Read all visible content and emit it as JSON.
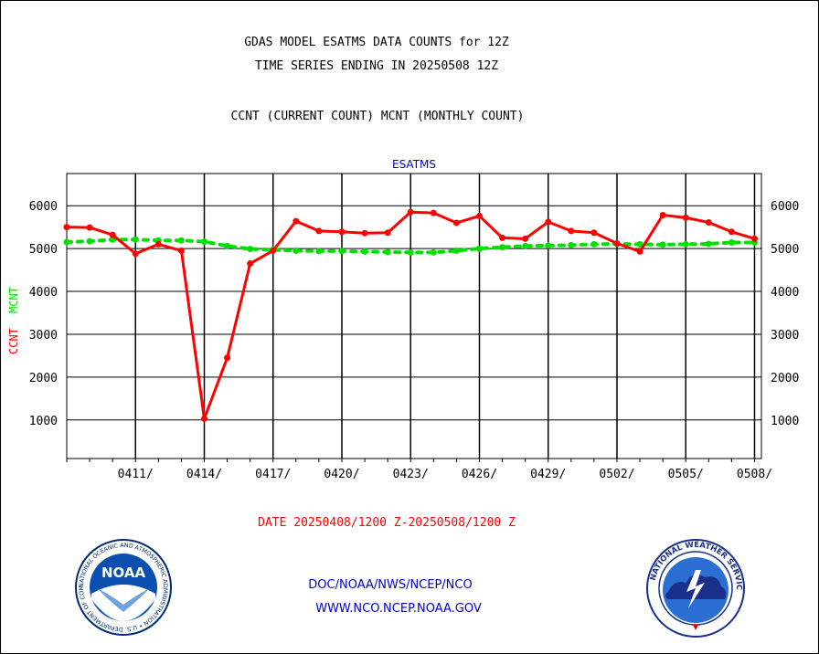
{
  "header": {
    "title_line1": "GDAS MODEL ESATMS DATA COUNTS for 12Z",
    "title_line2": "TIME SERIES ENDING IN 20250508 12Z",
    "subtitle": "CCNT (CURRENT COUNT) MCNT (MONTHLY COUNT)"
  },
  "footer": {
    "date_range": "DATE 20250408/1200 Z-20250508/1200 Z",
    "org_line1": "DOC/NOAA/NWS/NCEP/NCO",
    "org_line2": "WWW.NCO.NCEP.NOAA.GOV"
  },
  "logos": {
    "noaa_text": "NOAA",
    "noaa_ring": "NATIONAL OCEANIC AND ATMOSPHERIC ADMINISTRATION • U.S. DEPARTMENT OF COMMERCE •",
    "nws_ring": "NATIONAL WEATHER SERVICE"
  },
  "colors": {
    "ccnt": "#ff0000",
    "mcnt": "#00e000",
    "title": "#000000",
    "date": "#ff0000",
    "org": "#0000cc",
    "chart_title": "#0000cc"
  },
  "chart_data": {
    "type": "line",
    "title": "ESATMS",
    "ylabel_series": [
      "CCNT",
      "MCNT"
    ],
    "xlabel": "",
    "x_tick_labels": [
      "0411/",
      "0414/",
      "0417/",
      "0420/",
      "0423/",
      "0426/",
      "0429/",
      "0502/",
      "0505/",
      "0508/"
    ],
    "x_tick_days": [
      3,
      6,
      9,
      12,
      15,
      18,
      21,
      24,
      27,
      30
    ],
    "y_ticks": [
      1000,
      2000,
      3000,
      4000,
      5000,
      6000
    ],
    "xlim": [
      0,
      30.3
    ],
    "ylim": [
      100,
      6750
    ],
    "grid": true,
    "series": [
      {
        "name": "CCNT",
        "color": "#ff0000",
        "x": [
          0,
          1,
          2,
          3,
          4,
          5,
          6,
          7,
          8,
          9,
          10,
          11,
          12,
          13,
          14,
          15,
          16,
          17,
          18,
          19,
          20,
          21,
          22,
          23,
          24,
          25,
          26,
          27,
          28,
          29,
          30
        ],
        "values": [
          5500,
          5490,
          5320,
          4880,
          5100,
          4950,
          1030,
          2450,
          4650,
          4950,
          5640,
          5410,
          5390,
          5360,
          5370,
          5850,
          5830,
          5600,
          5760,
          5250,
          5230,
          5620,
          5410,
          5370,
          5120,
          4930,
          5780,
          5720,
          5610,
          5390,
          5230
        ]
      },
      {
        "name": "MCNT",
        "color": "#00e000",
        "x": [
          0,
          1,
          2,
          3,
          4,
          5,
          6,
          7,
          8,
          9,
          10,
          11,
          12,
          13,
          14,
          15,
          16,
          17,
          18,
          19,
          20,
          21,
          22,
          23,
          24,
          25,
          26,
          27,
          28,
          29,
          30
        ],
        "values": [
          5150,
          5170,
          5210,
          5210,
          5190,
          5190,
          5160,
          5060,
          4990,
          4970,
          4950,
          4940,
          4940,
          4930,
          4920,
          4910,
          4910,
          4950,
          5000,
          5030,
          5060,
          5070,
          5080,
          5100,
          5110,
          5100,
          5090,
          5100,
          5110,
          5140,
          5140
        ]
      }
    ]
  }
}
